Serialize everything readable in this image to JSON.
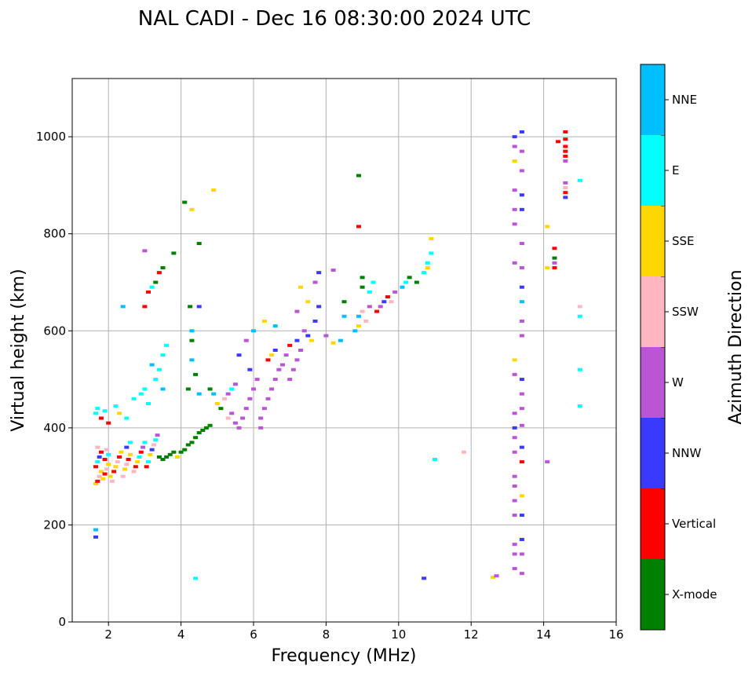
{
  "chart_data": {
    "type": "scatter",
    "title": "NAL CADI - Dec 16 08:30:00 2024 UTC",
    "xlabel": "Frequency (MHz)",
    "ylabel": "Virtual height (km)",
    "xlim": [
      1,
      16
    ],
    "ylim": [
      0,
      1120
    ],
    "xticks": [
      2,
      4,
      6,
      8,
      10,
      12,
      14,
      16
    ],
    "yticks": [
      0,
      200,
      400,
      600,
      800,
      1000
    ],
    "grid": true,
    "colorbar": {
      "label": "Azimuth Direction",
      "categories": [
        {
          "name": "X-mode",
          "color": "#008000"
        },
        {
          "name": "Vertical",
          "color": "#ff0000"
        },
        {
          "name": "NNW",
          "color": "#3a3aff"
        },
        {
          "name": "W",
          "color": "#ba55d3"
        },
        {
          "name": "SSW",
          "color": "#ffb6c1"
        },
        {
          "name": "SSE",
          "color": "#ffd700"
        },
        {
          "name": "E",
          "color": "#00ffff"
        },
        {
          "name": "NNE",
          "color": "#00bfff"
        }
      ]
    },
    "points_format": [
      "frequency_mhz",
      "height_km",
      "direction_index"
    ],
    "points": [
      [
        1.65,
        285,
        5
      ],
      [
        1.7,
        290,
        1
      ],
      [
        1.75,
        300,
        4
      ],
      [
        1.8,
        310,
        5
      ],
      [
        1.65,
        320,
        1
      ],
      [
        1.7,
        330,
        6
      ],
      [
        1.75,
        340,
        2
      ],
      [
        1.8,
        350,
        1
      ],
      [
        1.7,
        360,
        4
      ],
      [
        1.85,
        295,
        5
      ],
      [
        1.9,
        305,
        1
      ],
      [
        1.95,
        315,
        4
      ],
      [
        2.0,
        325,
        5
      ],
      [
        1.9,
        335,
        1
      ],
      [
        2.0,
        345,
        6
      ],
      [
        1.95,
        355,
        4
      ],
      [
        2.05,
        300,
        5
      ],
      [
        2.1,
        290,
        4
      ],
      [
        2.15,
        310,
        1
      ],
      [
        2.2,
        320,
        5
      ],
      [
        2.25,
        330,
        4
      ],
      [
        2.3,
        340,
        1
      ],
      [
        2.35,
        350,
        5
      ],
      [
        2.4,
        300,
        4
      ],
      [
        2.45,
        315,
        5
      ],
      [
        2.5,
        325,
        4
      ],
      [
        2.55,
        335,
        1
      ],
      [
        2.6,
        345,
        5
      ],
      [
        2.5,
        360,
        2
      ],
      [
        2.6,
        370,
        6
      ],
      [
        2.7,
        310,
        4
      ],
      [
        2.75,
        320,
        1
      ],
      [
        2.8,
        330,
        5
      ],
      [
        2.85,
        340,
        6
      ],
      [
        2.9,
        350,
        1
      ],
      [
        2.95,
        360,
        3
      ],
      [
        3.0,
        370,
        6
      ],
      [
        3.05,
        320,
        1
      ],
      [
        3.1,
        330,
        6
      ],
      [
        3.15,
        345,
        5
      ],
      [
        3.2,
        355,
        2
      ],
      [
        3.25,
        365,
        4
      ],
      [
        3.3,
        375,
        6
      ],
      [
        3.35,
        385,
        3
      ],
      [
        3.4,
        340,
        0
      ],
      [
        3.5,
        335,
        0
      ],
      [
        3.6,
        340,
        0
      ],
      [
        3.7,
        345,
        0
      ],
      [
        3.8,
        350,
        0
      ],
      [
        3.9,
        340,
        5
      ],
      [
        4.0,
        350,
        0
      ],
      [
        4.1,
        355,
        0
      ],
      [
        4.2,
        365,
        0
      ],
      [
        4.3,
        370,
        0
      ],
      [
        4.4,
        380,
        0
      ],
      [
        4.5,
        390,
        0
      ],
      [
        4.6,
        395,
        0
      ],
      [
        4.7,
        400,
        0
      ],
      [
        4.8,
        405,
        0
      ],
      [
        1.65,
        430,
        6
      ],
      [
        1.7,
        440,
        6
      ],
      [
        1.8,
        420,
        1
      ],
      [
        1.9,
        435,
        6
      ],
      [
        2.0,
        410,
        1
      ],
      [
        2.2,
        445,
        6
      ],
      [
        2.3,
        430,
        5
      ],
      [
        2.5,
        420,
        6
      ],
      [
        2.7,
        460,
        6
      ],
      [
        2.9,
        470,
        6
      ],
      [
        3.0,
        480,
        6
      ],
      [
        3.1,
        450,
        6
      ],
      [
        3.3,
        500,
        6
      ],
      [
        3.4,
        520,
        6
      ],
      [
        3.5,
        550,
        6
      ],
      [
        3.6,
        570,
        6
      ],
      [
        3.2,
        530,
        7
      ],
      [
        3.5,
        480,
        7
      ],
      [
        2.4,
        650,
        7
      ],
      [
        3.0,
        650,
        1
      ],
      [
        3.1,
        680,
        1
      ],
      [
        3.2,
        690,
        6
      ],
      [
        3.3,
        700,
        0
      ],
      [
        3.5,
        730,
        0
      ],
      [
        3.4,
        720,
        1
      ],
      [
        3.0,
        765,
        3
      ],
      [
        3.8,
        760,
        0
      ],
      [
        1.65,
        190,
        7
      ],
      [
        1.65,
        175,
        2
      ],
      [
        4.1,
        865,
        0
      ],
      [
        4.3,
        850,
        5
      ],
      [
        4.5,
        780,
        0
      ],
      [
        4.9,
        890,
        5
      ],
      [
        4.25,
        650,
        0
      ],
      [
        4.5,
        650,
        2
      ],
      [
        4.3,
        600,
        7
      ],
      [
        4.3,
        580,
        0
      ],
      [
        4.3,
        540,
        7
      ],
      [
        4.4,
        510,
        0
      ],
      [
        4.2,
        480,
        0
      ],
      [
        4.5,
        470,
        7
      ],
      [
        4.8,
        480,
        0
      ],
      [
        4.9,
        470,
        7
      ],
      [
        5.0,
        450,
        5
      ],
      [
        5.1,
        440,
        0
      ],
      [
        5.2,
        460,
        4
      ],
      [
        5.3,
        470,
        3
      ],
      [
        5.4,
        480,
        6
      ],
      [
        5.5,
        490,
        3
      ],
      [
        5.3,
        420,
        4
      ],
      [
        5.4,
        430,
        3
      ],
      [
        5.5,
        410,
        3
      ],
      [
        5.6,
        400,
        3
      ],
      [
        5.7,
        420,
        3
      ],
      [
        5.8,
        440,
        3
      ],
      [
        5.9,
        460,
        3
      ],
      [
        6.0,
        480,
        3
      ],
      [
        6.1,
        500,
        3
      ],
      [
        6.2,
        420,
        3
      ],
      [
        6.3,
        440,
        3
      ],
      [
        6.4,
        460,
        3
      ],
      [
        6.5,
        480,
        3
      ],
      [
        6.6,
        500,
        3
      ],
      [
        6.7,
        520,
        3
      ],
      [
        6.4,
        540,
        1
      ],
      [
        6.5,
        550,
        5
      ],
      [
        6.6,
        560,
        2
      ],
      [
        6.2,
        400,
        3
      ],
      [
        5.9,
        520,
        2
      ],
      [
        5.6,
        550,
        2
      ],
      [
        5.8,
        580,
        3
      ],
      [
        6.0,
        600,
        7
      ],
      [
        6.3,
        620,
        5
      ],
      [
        6.6,
        610,
        7
      ],
      [
        4.4,
        90,
        6
      ],
      [
        10.7,
        90,
        2
      ],
      [
        6.8,
        530,
        3
      ],
      [
        6.9,
        550,
        3
      ],
      [
        7.0,
        500,
        3
      ],
      [
        7.1,
        520,
        3
      ],
      [
        7.2,
        540,
        3
      ],
      [
        7.3,
        560,
        3
      ],
      [
        7.0,
        570,
        1
      ],
      [
        7.2,
        580,
        2
      ],
      [
        7.4,
        600,
        3
      ],
      [
        7.5,
        590,
        2
      ],
      [
        7.6,
        580,
        5
      ],
      [
        7.7,
        620,
        2
      ],
      [
        7.8,
        650,
        2
      ],
      [
        7.7,
        700,
        3
      ],
      [
        7.8,
        720,
        2
      ],
      [
        7.2,
        640,
        3
      ],
      [
        7.5,
        660,
        5
      ],
      [
        7.3,
        690,
        5
      ],
      [
        8.0,
        590,
        3
      ],
      [
        8.2,
        575,
        5
      ],
      [
        8.2,
        725,
        3
      ],
      [
        8.4,
        580,
        7
      ],
      [
        8.5,
        630,
        7
      ],
      [
        8.5,
        660,
        0
      ],
      [
        8.8,
        600,
        7
      ],
      [
        8.9,
        610,
        5
      ],
      [
        8.9,
        630,
        7
      ],
      [
        9.0,
        640,
        4
      ],
      [
        9.1,
        620,
        4
      ],
      [
        9.2,
        650,
        3
      ],
      [
        9.0,
        690,
        0
      ],
      [
        9.0,
        710,
        0
      ],
      [
        9.2,
        680,
        6
      ],
      [
        9.3,
        700,
        6
      ],
      [
        9.4,
        640,
        1
      ],
      [
        9.5,
        650,
        3
      ],
      [
        9.6,
        660,
        2
      ],
      [
        9.7,
        670,
        1
      ],
      [
        9.8,
        660,
        4
      ],
      [
        9.9,
        680,
        3
      ],
      [
        10.1,
        690,
        7
      ],
      [
        10.2,
        700,
        6
      ],
      [
        10.3,
        710,
        0
      ],
      [
        10.5,
        700,
        0
      ],
      [
        10.7,
        720,
        6
      ],
      [
        10.8,
        740,
        6
      ],
      [
        10.9,
        760,
        6
      ],
      [
        10.9,
        790,
        5
      ],
      [
        10.8,
        730,
        5
      ],
      [
        11.0,
        335,
        6
      ],
      [
        11.8,
        350,
        4
      ],
      [
        8.9,
        920,
        0
      ],
      [
        8.9,
        815,
        1
      ],
      [
        12.6,
        92,
        5
      ],
      [
        12.7,
        95,
        3
      ],
      [
        13.2,
        1000,
        2
      ],
      [
        13.2,
        980,
        3
      ],
      [
        13.2,
        950,
        5
      ],
      [
        13.2,
        890,
        3
      ],
      [
        13.2,
        850,
        3
      ],
      [
        13.2,
        820,
        3
      ],
      [
        13.2,
        740,
        3
      ],
      [
        13.2,
        540,
        5
      ],
      [
        13.2,
        510,
        3
      ],
      [
        13.2,
        430,
        3
      ],
      [
        13.2,
        400,
        2
      ],
      [
        13.2,
        380,
        3
      ],
      [
        13.2,
        350,
        3
      ],
      [
        13.2,
        300,
        3
      ],
      [
        13.2,
        280,
        3
      ],
      [
        13.2,
        250,
        3
      ],
      [
        13.2,
        220,
        3
      ],
      [
        13.2,
        160,
        3
      ],
      [
        13.2,
        140,
        3
      ],
      [
        13.2,
        110,
        3
      ],
      [
        13.4,
        1010,
        2
      ],
      [
        13.4,
        970,
        3
      ],
      [
        13.4,
        930,
        3
      ],
      [
        13.4,
        880,
        2
      ],
      [
        13.4,
        850,
        2
      ],
      [
        13.4,
        780,
        3
      ],
      [
        13.4,
        730,
        3
      ],
      [
        13.4,
        690,
        2
      ],
      [
        13.4,
        660,
        7
      ],
      [
        13.4,
        620,
        3
      ],
      [
        13.4,
        590,
        3
      ],
      [
        13.4,
        500,
        2
      ],
      [
        13.4,
        470,
        3
      ],
      [
        13.4,
        440,
        3
      ],
      [
        13.4,
        405,
        3
      ],
      [
        13.4,
        360,
        2
      ],
      [
        13.4,
        330,
        1
      ],
      [
        13.4,
        260,
        5
      ],
      [
        13.4,
        220,
        2
      ],
      [
        13.4,
        170,
        2
      ],
      [
        13.4,
        140,
        3
      ],
      [
        13.4,
        100,
        3
      ],
      [
        14.1,
        330,
        3
      ],
      [
        14.1,
        815,
        5
      ],
      [
        14.1,
        730,
        5
      ],
      [
        14.3,
        770,
        1
      ],
      [
        14.3,
        750,
        0
      ],
      [
        14.3,
        740,
        3
      ],
      [
        14.3,
        730,
        1
      ],
      [
        14.6,
        1010,
        1
      ],
      [
        14.6,
        995,
        1
      ],
      [
        14.6,
        980,
        1
      ],
      [
        14.6,
        970,
        1
      ],
      [
        14.6,
        960,
        1
      ],
      [
        14.6,
        950,
        3
      ],
      [
        14.4,
        990,
        1
      ],
      [
        14.6,
        905,
        3
      ],
      [
        14.6,
        895,
        4
      ],
      [
        14.6,
        885,
        1
      ],
      [
        14.6,
        875,
        2
      ],
      [
        15.0,
        910,
        6
      ],
      [
        15.0,
        650,
        4
      ],
      [
        15.0,
        630,
        6
      ],
      [
        15.0,
        520,
        6
      ],
      [
        15.0,
        445,
        6
      ]
    ]
  }
}
